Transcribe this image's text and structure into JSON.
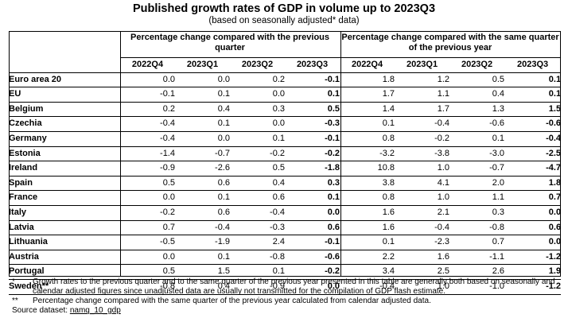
{
  "title": "Published growth rates of GDP in volume up to 2023Q3",
  "subtitle": "(based on seasonally adjusted* data)",
  "group_headers": {
    "qoq": "Percentage change compared with the previous quarter",
    "yoy": "Percentage change compared with the same quarter of the previous year"
  },
  "quarters": [
    "2022Q4",
    "2023Q1",
    "2023Q2",
    "2023Q3"
  ],
  "rows": [
    {
      "country": "Euro area 20",
      "qoq": [
        "0.0",
        "0.0",
        "0.2",
        "-0.1"
      ],
      "yoy": [
        "1.8",
        "1.2",
        "0.5",
        "0.1"
      ]
    },
    {
      "country": "EU",
      "qoq": [
        "-0.1",
        "0.1",
        "0.0",
        "0.1"
      ],
      "yoy": [
        "1.7",
        "1.1",
        "0.4",
        "0.1"
      ]
    },
    {
      "country": "Belgium",
      "qoq": [
        "0.2",
        "0.4",
        "0.3",
        "0.5"
      ],
      "yoy": [
        "1.4",
        "1.7",
        "1.3",
        "1.5"
      ]
    },
    {
      "country": "Czechia",
      "qoq": [
        "-0.4",
        "0.1",
        "0.0",
        "-0.3"
      ],
      "yoy": [
        "0.1",
        "-0.4",
        "-0.6",
        "-0.6"
      ]
    },
    {
      "country": "Germany",
      "qoq": [
        "-0.4",
        "0.0",
        "0.1",
        "-0.1"
      ],
      "yoy": [
        "0.8",
        "-0.2",
        "0.1",
        "-0.4"
      ]
    },
    {
      "country": "Estonia",
      "qoq": [
        "-1.4",
        "-0.7",
        "-0.2",
        "-0.2"
      ],
      "yoy": [
        "-3.2",
        "-3.8",
        "-3.0",
        "-2.5"
      ]
    },
    {
      "country": "Ireland",
      "qoq": [
        "-0.9",
        "-2.6",
        "0.5",
        "-1.8"
      ],
      "yoy": [
        "10.8",
        "1.0",
        "-0.7",
        "-4.7"
      ]
    },
    {
      "country": "Spain",
      "qoq": [
        "0.5",
        "0.6",
        "0.4",
        "0.3"
      ],
      "yoy": [
        "3.8",
        "4.1",
        "2.0",
        "1.8"
      ]
    },
    {
      "country": "France",
      "qoq": [
        "0.0",
        "0.1",
        "0.6",
        "0.1"
      ],
      "yoy": [
        "0.8",
        "1.0",
        "1.1",
        "0.7"
      ]
    },
    {
      "country": "Italy",
      "qoq": [
        "-0.2",
        "0.6",
        "-0.4",
        "0.0"
      ],
      "yoy": [
        "1.6",
        "2.1",
        "0.3",
        "0.0"
      ]
    },
    {
      "country": "Latvia",
      "qoq": [
        "0.7",
        "-0.4",
        "-0.3",
        "0.6"
      ],
      "yoy": [
        "1.6",
        "-0.4",
        "-0.8",
        "0.6"
      ]
    },
    {
      "country": "Lithuania",
      "qoq": [
        "-0.5",
        "-1.9",
        "2.4",
        "-0.1"
      ],
      "yoy": [
        "0.1",
        "-2.3",
        "0.7",
        "0.0"
      ]
    },
    {
      "country": "Austria",
      "qoq": [
        "0.0",
        "0.1",
        "-0.8",
        "-0.6"
      ],
      "yoy": [
        "2.2",
        "1.6",
        "-1.1",
        "-1.2"
      ]
    },
    {
      "country": "Portugal",
      "qoq": [
        "0.5",
        "1.5",
        "0.1",
        "-0.2"
      ],
      "yoy": [
        "3.4",
        "2.5",
        "2.6",
        "1.9"
      ]
    },
    {
      "country": "Sweden**",
      "qoq": [
        "-0.8",
        "0.4",
        "-0.9",
        "0.0"
      ],
      "yoy": [
        "-0.4",
        "1.0",
        "-1.0",
        "-1.2"
      ]
    }
  ],
  "notes": {
    "n1_mark": "*",
    "n1_text": "Growth rates to the previous quarter and to the same quarter of the previous year presented in this table are generally both based on seasonally and calendar adjusted figures since unadjusted data are usually not transmitted for the compilation of GDP flash estimate.",
    "n2_mark": "**",
    "n2_text": "Percentage change compared with the same quarter of the previous year calculated from calendar adjusted data.",
    "source_label": "Source dataset:",
    "source_link": "namq_10_gdp"
  }
}
